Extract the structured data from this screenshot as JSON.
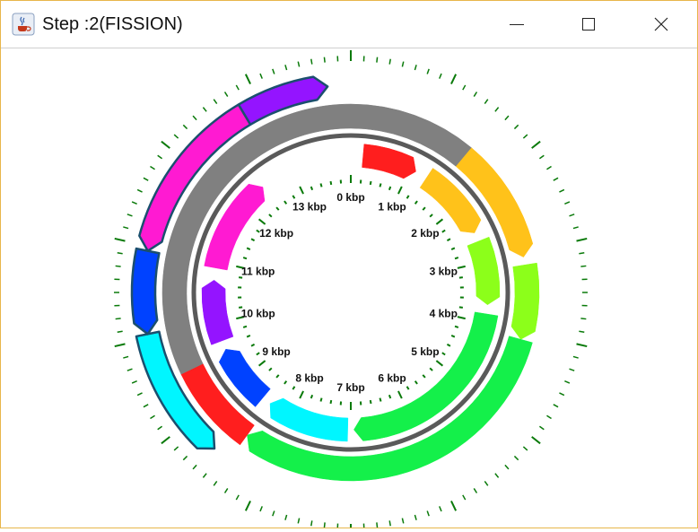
{
  "window": {
    "title": "Step :2(FISSION)"
  },
  "controls": {
    "minimize": "minimize",
    "maximize": "maximize",
    "close": "close"
  },
  "colors": {
    "tick": "#0a7a0a",
    "backbone": "#5a5a5a",
    "gray_arc": "#808080",
    "red": "#ff1e1e",
    "orange": "#ffc21a",
    "lime": "#8cff1a",
    "green": "#14f04a",
    "cyan": "#00f6ff",
    "blue": "#0042ff",
    "purple": "#9414ff",
    "magenta": "#ff1ad2"
  },
  "chart_data": {
    "type": "circular_genome_map",
    "unit": "kbp",
    "total_kbp": 14,
    "tick_labels": [
      "0 kbp",
      "1 kbp",
      "2 kbp",
      "3 kbp",
      "4 kbp",
      "5 kbp",
      "6 kbp",
      "7 kbp",
      "8 kbp",
      "9 kbp",
      "10 kbp",
      "11 kbp",
      "12 kbp",
      "13 kbp"
    ],
    "inner_features": [
      {
        "start": 0.2,
        "end": 1.1,
        "color": "red",
        "strand": "+"
      },
      {
        "start": 1.3,
        "end": 2.5,
        "color": "orange",
        "strand": "+"
      },
      {
        "start": 2.65,
        "end": 3.7,
        "color": "lime",
        "strand": "+"
      },
      {
        "start": 3.85,
        "end": 6.95,
        "color": "green",
        "strand": "+"
      },
      {
        "start": 7.05,
        "end": 8.4,
        "color": "cyan",
        "strand": "+"
      },
      {
        "start": 8.55,
        "end": 9.55,
        "color": "blue",
        "strand": "+"
      },
      {
        "start": 9.7,
        "end": 10.7,
        "color": "purple",
        "strand": "+"
      },
      {
        "start": 10.9,
        "end": 12.45,
        "color": "magenta",
        "strand": "+"
      }
    ],
    "outer_features": [
      {
        "start": 0.0,
        "end": 1.55,
        "color": "gray_arc",
        "strand": "none"
      },
      {
        "start": 1.55,
        "end": 3.05,
        "color": "orange",
        "strand": "+"
      },
      {
        "start": 3.15,
        "end": 4.1,
        "color": "lime",
        "strand": "+"
      },
      {
        "start": 4.1,
        "end": 8.4,
        "color": "green",
        "strand": "+"
      },
      {
        "start": 8.4,
        "end": 9.5,
        "color": "red",
        "strand": "none"
      },
      {
        "start": 9.5,
        "end": 14.0,
        "color": "gray_arc",
        "strand": "none"
      }
    ],
    "extra_features": [
      {
        "start": 8.6,
        "end": 10.05,
        "color": "cyan",
        "strand": "-"
      },
      {
        "start": 10.05,
        "end": 10.95,
        "color": "blue",
        "strand": "-"
      },
      {
        "start": 10.95,
        "end": 12.8,
        "color": "magenta",
        "strand": "-"
      },
      {
        "start": 12.8,
        "end": 13.75,
        "color": "purple",
        "strand": "+"
      }
    ]
  }
}
